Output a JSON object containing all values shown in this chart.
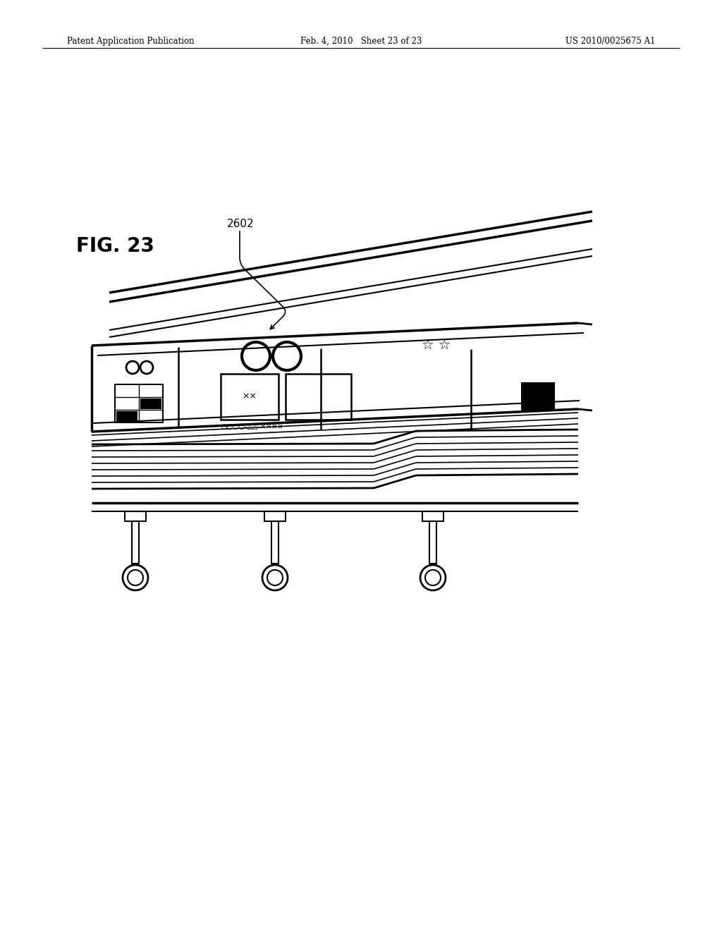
{
  "title": "FIG. 23",
  "label_2602": "2602",
  "header_left": "Patent Application Publication",
  "header_mid": "Feb. 4, 2010   Sheet 23 of 23",
  "header_right": "US 2010/0025675 A1",
  "bg_color": "#ffffff",
  "line_color": "#000000"
}
